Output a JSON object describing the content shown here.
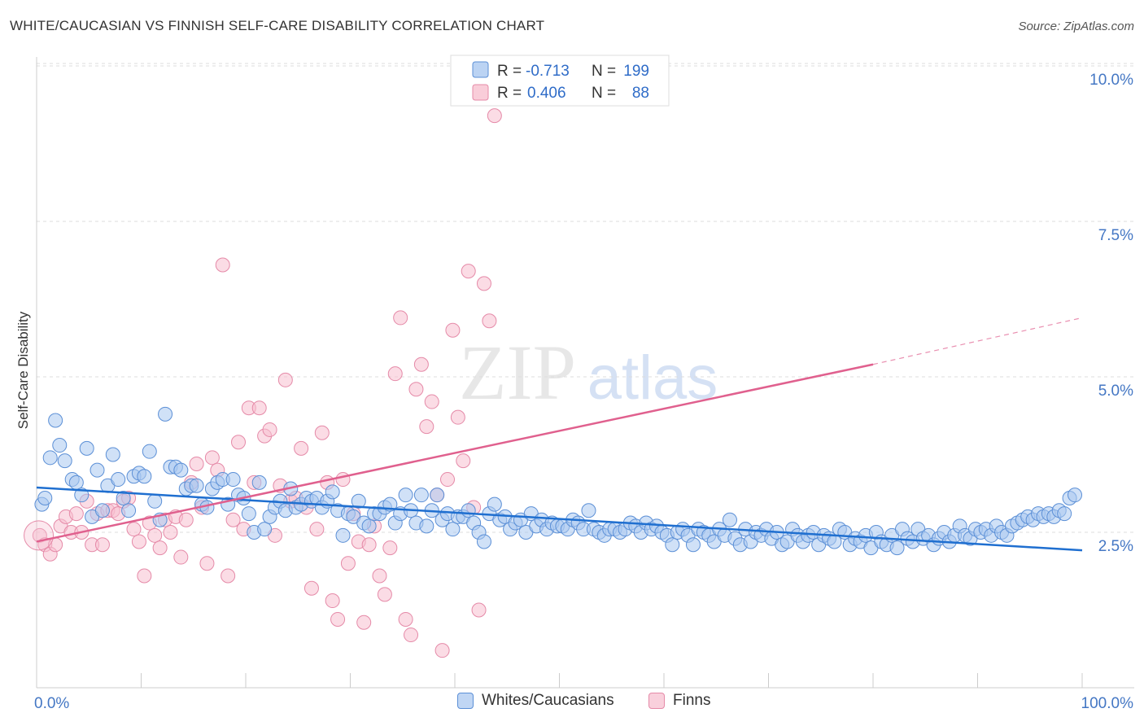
{
  "header": {
    "title": "WHITE/CAUCASIAN VS FINNISH SELF-CARE DISABILITY CORRELATION CHART",
    "source": "Source: ZipAtlas.com"
  },
  "watermark": {
    "zip": "ZIP",
    "atlas": "atlas"
  },
  "legend_top": {
    "rows": [
      {
        "r_label": "R =",
        "r_value": "-0.713",
        "n_label": "N =",
        "n_value": "199"
      },
      {
        "r_label": "R =",
        "r_value": "0.406",
        "n_label": "N =",
        "n_value": "88"
      }
    ]
  },
  "legend_bottom": {
    "items": [
      {
        "label": "Whites/Caucasians"
      },
      {
        "label": "Finns"
      }
    ]
  },
  "colors": {
    "blue_fill": "#aac8f0",
    "blue_stroke": "#5b8fd6",
    "blue_line": "#1f6fd0",
    "pink_fill": "#f7c0d0",
    "pink_stroke": "#e58aa8",
    "pink_line": "#e0608e",
    "tick_label": "#4477c4"
  },
  "chart_data": {
    "type": "scatter",
    "title": "WHITE/CAUCASIAN VS FINNISH SELF-CARE DISABILITY CORRELATION CHART",
    "xlabel": "",
    "ylabel": "Self-Care Disability",
    "xlim": [
      0,
      100
    ],
    "ylim": [
      0,
      10.5
    ],
    "x_ticks": [
      {
        "value": 0,
        "label": "0.0%"
      },
      {
        "value": 100,
        "label": "100.0%"
      }
    ],
    "y_ticks": [
      {
        "value": 2.5,
        "label": "2.5%"
      },
      {
        "value": 5.0,
        "label": "5.0%"
      },
      {
        "value": 7.5,
        "label": "7.5%"
      },
      {
        "value": 10.0,
        "label": "10.0%"
      }
    ],
    "grid": true,
    "legend": "top-center",
    "series": [
      {
        "name": "Whites/Caucasians",
        "R": -0.713,
        "N": 199,
        "trend": {
          "x": [
            0,
            100
          ],
          "y": [
            3.22,
            2.21
          ]
        },
        "points": [
          [
            0.5,
            2.95
          ],
          [
            0.8,
            3.05
          ],
          [
            1.3,
            3.7
          ],
          [
            1.8,
            4.3
          ],
          [
            2.2,
            3.9
          ],
          [
            2.7,
            3.65
          ],
          [
            3.4,
            3.35
          ],
          [
            3.8,
            3.3
          ],
          [
            4.3,
            3.1
          ],
          [
            4.8,
            3.85
          ],
          [
            5.3,
            2.75
          ],
          [
            5.8,
            3.5
          ],
          [
            6.3,
            2.85
          ],
          [
            6.8,
            3.25
          ],
          [
            7.3,
            3.75
          ],
          [
            7.8,
            3.35
          ],
          [
            8.3,
            3.05
          ],
          [
            8.8,
            2.85
          ],
          [
            9.3,
            3.4
          ],
          [
            9.8,
            3.45
          ],
          [
            10.3,
            3.4
          ],
          [
            10.8,
            3.8
          ],
          [
            11.3,
            3.0
          ],
          [
            11.8,
            2.7
          ],
          [
            12.3,
            4.4
          ],
          [
            12.8,
            3.55
          ],
          [
            13.3,
            3.55
          ],
          [
            13.8,
            3.5
          ],
          [
            14.3,
            3.2
          ],
          [
            14.8,
            3.25
          ],
          [
            15.3,
            3.25
          ],
          [
            15.8,
            2.95
          ],
          [
            16.3,
            2.9
          ],
          [
            16.8,
            3.2
          ],
          [
            17.3,
            3.3
          ],
          [
            17.8,
            3.35
          ],
          [
            18.3,
            2.95
          ],
          [
            18.8,
            3.35
          ],
          [
            19.3,
            3.1
          ],
          [
            19.8,
            3.05
          ],
          [
            20.3,
            2.8
          ],
          [
            20.8,
            2.5
          ],
          [
            21.3,
            3.3
          ],
          [
            21.8,
            2.55
          ],
          [
            22.3,
            2.75
          ],
          [
            22.8,
            2.9
          ],
          [
            23.3,
            3.0
          ],
          [
            23.8,
            2.85
          ],
          [
            24.3,
            3.2
          ],
          [
            24.8,
            2.9
          ],
          [
            25.3,
            2.95
          ],
          [
            25.8,
            3.05
          ],
          [
            26.3,
            3.0
          ],
          [
            26.8,
            3.05
          ],
          [
            27.3,
            2.9
          ],
          [
            27.8,
            3.0
          ],
          [
            28.3,
            3.15
          ],
          [
            28.8,
            2.85
          ],
          [
            29.3,
            2.45
          ],
          [
            29.8,
            2.8
          ],
          [
            30.3,
            2.75
          ],
          [
            30.8,
            3.0
          ],
          [
            31.3,
            2.65
          ],
          [
            31.8,
            2.6
          ],
          [
            32.3,
            2.8
          ],
          [
            32.8,
            2.8
          ],
          [
            33.3,
            2.9
          ],
          [
            33.8,
            2.95
          ],
          [
            34.3,
            2.65
          ],
          [
            34.8,
            2.8
          ],
          [
            35.3,
            3.1
          ],
          [
            35.8,
            2.85
          ],
          [
            36.3,
            2.65
          ],
          [
            36.8,
            3.1
          ],
          [
            37.3,
            2.6
          ],
          [
            37.8,
            2.85
          ],
          [
            38.3,
            3.1
          ],
          [
            38.8,
            2.7
          ],
          [
            39.3,
            2.8
          ],
          [
            39.8,
            2.55
          ],
          [
            40.3,
            2.75
          ],
          [
            40.8,
            2.75
          ],
          [
            41.3,
            2.85
          ],
          [
            41.8,
            2.65
          ],
          [
            42.3,
            2.5
          ],
          [
            42.8,
            2.35
          ],
          [
            43.3,
            2.8
          ],
          [
            43.8,
            2.95
          ],
          [
            44.3,
            2.7
          ],
          [
            44.8,
            2.75
          ],
          [
            45.3,
            2.55
          ],
          [
            45.8,
            2.65
          ],
          [
            46.3,
            2.7
          ],
          [
            46.8,
            2.5
          ],
          [
            47.3,
            2.8
          ],
          [
            47.8,
            2.6
          ],
          [
            48.3,
            2.7
          ],
          [
            48.8,
            2.55
          ],
          [
            49.3,
            2.65
          ],
          [
            49.8,
            2.6
          ],
          [
            50.3,
            2.6
          ],
          [
            50.8,
            2.55
          ],
          [
            51.3,
            2.7
          ],
          [
            51.8,
            2.65
          ],
          [
            52.3,
            2.55
          ],
          [
            52.8,
            2.85
          ],
          [
            53.3,
            2.55
          ],
          [
            53.8,
            2.5
          ],
          [
            54.3,
            2.45
          ],
          [
            54.8,
            2.55
          ],
          [
            55.3,
            2.55
          ],
          [
            55.8,
            2.5
          ],
          [
            56.3,
            2.55
          ],
          [
            56.8,
            2.65
          ],
          [
            57.3,
            2.6
          ],
          [
            57.8,
            2.5
          ],
          [
            58.3,
            2.65
          ],
          [
            58.8,
            2.55
          ],
          [
            59.3,
            2.6
          ],
          [
            59.8,
            2.5
          ],
          [
            60.3,
            2.45
          ],
          [
            60.8,
            2.3
          ],
          [
            61.3,
            2.5
          ],
          [
            61.8,
            2.55
          ],
          [
            62.3,
            2.45
          ],
          [
            62.8,
            2.3
          ],
          [
            63.3,
            2.55
          ],
          [
            63.8,
            2.5
          ],
          [
            64.3,
            2.45
          ],
          [
            64.8,
            2.35
          ],
          [
            65.3,
            2.55
          ],
          [
            65.8,
            2.45
          ],
          [
            66.3,
            2.7
          ],
          [
            66.8,
            2.4
          ],
          [
            67.3,
            2.3
          ],
          [
            67.8,
            2.55
          ],
          [
            68.3,
            2.35
          ],
          [
            68.8,
            2.5
          ],
          [
            69.3,
            2.45
          ],
          [
            69.8,
            2.55
          ],
          [
            70.3,
            2.4
          ],
          [
            70.8,
            2.5
          ],
          [
            71.3,
            2.3
          ],
          [
            71.8,
            2.35
          ],
          [
            72.3,
            2.55
          ],
          [
            72.8,
            2.45
          ],
          [
            73.3,
            2.35
          ],
          [
            73.8,
            2.45
          ],
          [
            74.3,
            2.5
          ],
          [
            74.8,
            2.3
          ],
          [
            75.3,
            2.45
          ],
          [
            75.8,
            2.4
          ],
          [
            76.3,
            2.35
          ],
          [
            76.8,
            2.55
          ],
          [
            77.3,
            2.5
          ],
          [
            77.8,
            2.3
          ],
          [
            78.3,
            2.4
          ],
          [
            78.8,
            2.35
          ],
          [
            79.3,
            2.45
          ],
          [
            79.8,
            2.25
          ],
          [
            80.3,
            2.5
          ],
          [
            80.8,
            2.35
          ],
          [
            81.3,
            2.3
          ],
          [
            81.8,
            2.45
          ],
          [
            82.3,
            2.25
          ],
          [
            82.8,
            2.55
          ],
          [
            83.3,
            2.4
          ],
          [
            83.8,
            2.35
          ],
          [
            84.3,
            2.55
          ],
          [
            84.8,
            2.4
          ],
          [
            85.3,
            2.45
          ],
          [
            85.8,
            2.3
          ],
          [
            86.3,
            2.4
          ],
          [
            86.8,
            2.5
          ],
          [
            87.3,
            2.35
          ],
          [
            87.8,
            2.45
          ],
          [
            88.3,
            2.6
          ],
          [
            88.8,
            2.45
          ],
          [
            89.3,
            2.4
          ],
          [
            89.8,
            2.55
          ],
          [
            90.3,
            2.5
          ],
          [
            90.8,
            2.55
          ],
          [
            91.3,
            2.45
          ],
          [
            91.8,
            2.6
          ],
          [
            92.3,
            2.5
          ],
          [
            92.8,
            2.45
          ],
          [
            93.3,
            2.6
          ],
          [
            93.8,
            2.65
          ],
          [
            94.3,
            2.7
          ],
          [
            94.8,
            2.75
          ],
          [
            95.3,
            2.7
          ],
          [
            95.8,
            2.8
          ],
          [
            96.3,
            2.75
          ],
          [
            96.8,
            2.8
          ],
          [
            97.3,
            2.75
          ],
          [
            97.8,
            2.85
          ],
          [
            98.3,
            2.8
          ],
          [
            98.8,
            3.05
          ],
          [
            99.3,
            3.1
          ]
        ]
      },
      {
        "name": "Finns",
        "R": 0.406,
        "N": 88,
        "trend": {
          "x": [
            0,
            80
          ],
          "y": [
            2.35,
            5.2
          ],
          "dashed_to": {
            "x": 100,
            "y": 5.95
          }
        },
        "points": [
          [
            0.3,
            2.45
          ],
          [
            0.8,
            2.3
          ],
          [
            1.3,
            2.15
          ],
          [
            1.8,
            2.3
          ],
          [
            2.3,
            2.6
          ],
          [
            2.8,
            2.75
          ],
          [
            3.3,
            2.5
          ],
          [
            3.8,
            2.8
          ],
          [
            4.3,
            2.5
          ],
          [
            4.8,
            3.0
          ],
          [
            5.3,
            2.3
          ],
          [
            5.8,
            2.8
          ],
          [
            6.3,
            2.3
          ],
          [
            6.8,
            2.85
          ],
          [
            7.3,
            2.85
          ],
          [
            7.8,
            2.8
          ],
          [
            8.3,
            3.0
          ],
          [
            8.8,
            3.05
          ],
          [
            9.3,
            2.55
          ],
          [
            9.8,
            2.35
          ],
          [
            10.3,
            1.8
          ],
          [
            10.8,
            2.65
          ],
          [
            11.3,
            2.45
          ],
          [
            11.8,
            2.25
          ],
          [
            12.3,
            2.7
          ],
          [
            12.8,
            2.5
          ],
          [
            13.3,
            2.75
          ],
          [
            13.8,
            2.1
          ],
          [
            14.3,
            2.7
          ],
          [
            14.8,
            3.3
          ],
          [
            15.3,
            3.6
          ],
          [
            15.8,
            2.9
          ],
          [
            16.3,
            2.0
          ],
          [
            16.8,
            3.7
          ],
          [
            17.3,
            3.5
          ],
          [
            17.8,
            6.8
          ],
          [
            18.3,
            1.8
          ],
          [
            18.8,
            2.7
          ],
          [
            19.3,
            3.95
          ],
          [
            19.8,
            2.55
          ],
          [
            20.3,
            4.5
          ],
          [
            20.8,
            3.3
          ],
          [
            21.3,
            4.5
          ],
          [
            21.8,
            4.05
          ],
          [
            22.3,
            4.15
          ],
          [
            22.8,
            2.45
          ],
          [
            23.3,
            3.25
          ],
          [
            23.8,
            4.95
          ],
          [
            24.3,
            3.0
          ],
          [
            24.8,
            3.05
          ],
          [
            25.3,
            3.85
          ],
          [
            25.8,
            2.9
          ],
          [
            26.3,
            1.6
          ],
          [
            26.8,
            2.55
          ],
          [
            27.3,
            4.1
          ],
          [
            27.8,
            3.3
          ],
          [
            28.3,
            1.4
          ],
          [
            28.8,
            1.1
          ],
          [
            29.3,
            3.35
          ],
          [
            29.8,
            2.0
          ],
          [
            30.3,
            2.8
          ],
          [
            30.8,
            2.35
          ],
          [
            31.3,
            1.05
          ],
          [
            31.8,
            2.3
          ],
          [
            32.3,
            2.6
          ],
          [
            32.8,
            1.8
          ],
          [
            33.3,
            1.5
          ],
          [
            33.8,
            2.25
          ],
          [
            34.3,
            5.05
          ],
          [
            34.8,
            5.95
          ],
          [
            35.3,
            1.1
          ],
          [
            35.8,
            0.85
          ],
          [
            36.3,
            4.8
          ],
          [
            36.8,
            5.2
          ],
          [
            37.3,
            4.2
          ],
          [
            37.8,
            4.6
          ],
          [
            38.3,
            3.1
          ],
          [
            38.8,
            0.6
          ],
          [
            39.3,
            3.35
          ],
          [
            39.8,
            5.75
          ],
          [
            40.3,
            4.35
          ],
          [
            40.8,
            3.65
          ],
          [
            41.3,
            6.7
          ],
          [
            41.8,
            2.9
          ],
          [
            42.3,
            1.25
          ],
          [
            42.8,
            6.5
          ],
          [
            43.3,
            5.9
          ],
          [
            43.8,
            9.2
          ]
        ]
      }
    ]
  }
}
